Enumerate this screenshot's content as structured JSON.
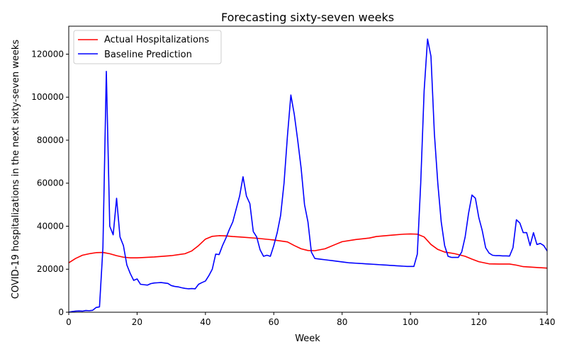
{
  "chart_data": {
    "type": "line",
    "title": "Forecasting sixty-seven weeks",
    "xlabel": "Week",
    "ylabel": "COVID-19 hospitalizations in the next sixty-seven weeks",
    "xlim": [
      0,
      140
    ],
    "ylim": [
      0,
      133000
    ],
    "xticks": [
      0,
      20,
      40,
      60,
      80,
      100,
      120,
      140
    ],
    "yticks": [
      0,
      20000,
      40000,
      60000,
      80000,
      100000,
      120000
    ],
    "grid": false,
    "legend_position": "upper-left",
    "series": [
      {
        "name": "Actual Hospitalizations",
        "color": "#ff0000",
        "x": [
          0,
          2,
          4,
          6,
          8,
          10,
          12,
          14,
          16,
          18,
          20,
          25,
          30,
          34,
          36,
          38,
          40,
          42,
          44,
          46,
          48,
          50,
          55,
          60,
          64,
          66,
          68,
          70,
          72,
          75,
          78,
          80,
          84,
          88,
          90,
          95,
          98,
          100,
          102,
          104,
          106,
          108,
          110,
          113,
          116,
          118,
          120,
          123,
          126,
          129,
          131,
          133,
          135,
          140
        ],
        "y": [
          23000,
          25000,
          26500,
          27200,
          27700,
          27800,
          27200,
          26300,
          25600,
          25300,
          25300,
          25700,
          26300,
          27200,
          28500,
          31000,
          34000,
          35300,
          35600,
          35500,
          35200,
          35000,
          34400,
          33600,
          32700,
          31000,
          29500,
          28700,
          28600,
          29500,
          31500,
          32800,
          33800,
          34500,
          35200,
          35900,
          36300,
          36400,
          36300,
          35000,
          31500,
          29200,
          28000,
          27200,
          26000,
          24700,
          23500,
          22500,
          22400,
          22400,
          21900,
          21200,
          21000,
          20500
        ]
      },
      {
        "name": "Baseline Prediction",
        "color": "#0000ff",
        "x": [
          0,
          1,
          2,
          3,
          4,
          5,
          6,
          7,
          8,
          9,
          10,
          11,
          12,
          13,
          14,
          15,
          16,
          17,
          18,
          19,
          20,
          21,
          22,
          23,
          24,
          25,
          26,
          27,
          28,
          29,
          30,
          31,
          32,
          33,
          34,
          35,
          36,
          37,
          38,
          39,
          40,
          41,
          42,
          43,
          44,
          45,
          46,
          47,
          48,
          49,
          50,
          51,
          52,
          53,
          54,
          55,
          56,
          57,
          58,
          59,
          60,
          61,
          62,
          63,
          64,
          65,
          66,
          67,
          68,
          69,
          70,
          71,
          72,
          73,
          74,
          75,
          76,
          77,
          78,
          79,
          80,
          81,
          82,
          83,
          84,
          85,
          86,
          87,
          88,
          89,
          90,
          91,
          92,
          93,
          94,
          95,
          96,
          97,
          98,
          99,
          100,
          101,
          102,
          103,
          104,
          105,
          106,
          107,
          108,
          109,
          110,
          111,
          112,
          113,
          114,
          115,
          116,
          117,
          118,
          119,
          120,
          121,
          122,
          123,
          124,
          125,
          126,
          127,
          128,
          129,
          130,
          131,
          132,
          133,
          134,
          135,
          136,
          137,
          138,
          139,
          140
        ],
        "y": [
          0,
          300,
          500,
          600,
          500,
          800,
          700,
          900,
          2200,
          2500,
          30000,
          112000,
          40000,
          36000,
          53000,
          35000,
          31000,
          22000,
          18000,
          14800,
          15500,
          13000,
          12800,
          12600,
          13300,
          13600,
          13700,
          13800,
          13600,
          13400,
          12400,
          12000,
          11800,
          11400,
          11100,
          10900,
          11000,
          10900,
          13000,
          13800,
          14500,
          17000,
          20000,
          27000,
          26800,
          31000,
          34500,
          38500,
          42000,
          48000,
          54000,
          63000,
          54000,
          50500,
          37500,
          35000,
          29000,
          26000,
          26500,
          26000,
          31000,
          37000,
          45000,
          60000,
          82000,
          101000,
          92000,
          80000,
          67000,
          50000,
          42000,
          28000,
          25000,
          24800,
          24600,
          24400,
          24200,
          24000,
          23800,
          23600,
          23400,
          23200,
          23000,
          22900,
          22800,
          22700,
          22600,
          22500,
          22400,
          22300,
          22200,
          22100,
          22000,
          21900,
          21800,
          21700,
          21600,
          21500,
          21400,
          21300,
          21300,
          21300,
          27000,
          60000,
          103000,
          127000,
          119000,
          83000,
          60000,
          42000,
          31000,
          26000,
          25500,
          25500,
          25500,
          28000,
          35000,
          46000,
          54500,
          53000,
          44000,
          38000,
          30000,
          27500,
          26500,
          26300,
          26300,
          26200,
          26200,
          26100,
          30000,
          43000,
          41500,
          37000,
          37000,
          31000,
          37000,
          31500,
          32000,
          31000,
          28500
        ]
      }
    ]
  }
}
